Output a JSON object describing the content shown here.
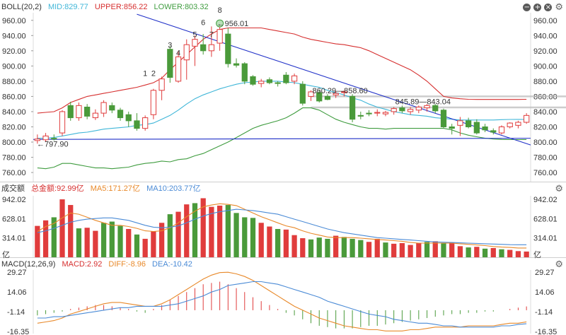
{
  "boll_header": {
    "name": "BOLL(20,2)",
    "mid": "MID:829.77",
    "upper": "UPPER:856.22",
    "lower": "LOWER:803.32"
  },
  "vol_header": {
    "name": "成交额",
    "total": "总金额:92.99亿",
    "ma5": "MA5:171.27亿",
    "ma10": "MA10:203.77亿"
  },
  "macd_header": {
    "name": "MACD(12,26,9)",
    "macd": "MACD:2.92",
    "diff": "DIFF:-8.96",
    "dea": "DEA:-10.42"
  },
  "colors": {
    "up": "#e03c3c",
    "down": "#4a9a3a",
    "mid": "#3fb6d8",
    "upper": "#d62f2f",
    "lower": "#3f9c3f",
    "trend": "#2030c8",
    "ma5": "#e8892a",
    "ma10": "#4b8bd6",
    "macd_diff": "#e8892a",
    "macd_dea": "#4b8bd6"
  },
  "price_ticks": [
    "960.00",
    "940.00",
    "920.00",
    "900.00",
    "880.00",
    "860.00",
    "840.00",
    "820.00",
    "800.00",
    "780.00",
    "760.00"
  ],
  "vol_ticks": [
    "942.02",
    "628.01",
    "314.01",
    "亿"
  ],
  "macd_ticks": [
    "29.27",
    "14.06",
    "-1.14",
    "-16.35"
  ],
  "annotations": {
    "peak": "956.01",
    "low": "797.90",
    "range1": "860.29—858.60",
    "range2": "845.89—843.04",
    "wave_labels": [
      "1",
      "2",
      "3",
      "4",
      "5",
      "6",
      "7",
      "8"
    ]
  },
  "chart_data": [
    {
      "type": "candlestick",
      "name": "BOLL(20,2)",
      "ylim": [
        748,
        970
      ],
      "candles": [
        {
          "o": 802,
          "h": 810,
          "l": 797.9,
          "c": 804
        },
        {
          "o": 803,
          "h": 812,
          "l": 800,
          "c": 808
        },
        {
          "o": 805,
          "h": 810,
          "l": 802,
          "c": 804
        },
        {
          "o": 812,
          "h": 842,
          "l": 808,
          "c": 840
        },
        {
          "o": 848,
          "h": 853,
          "l": 828,
          "c": 832
        },
        {
          "o": 832,
          "h": 852,
          "l": 828,
          "c": 848
        },
        {
          "o": 846,
          "h": 850,
          "l": 830,
          "c": 834
        },
        {
          "o": 832,
          "h": 843,
          "l": 829,
          "c": 838
        },
        {
          "o": 838,
          "h": 855,
          "l": 833,
          "c": 852
        },
        {
          "o": 848,
          "h": 852,
          "l": 838,
          "c": 842
        },
        {
          "o": 842,
          "h": 845,
          "l": 828,
          "c": 832
        },
        {
          "o": 836,
          "h": 840,
          "l": 820,
          "c": 828
        },
        {
          "o": 828,
          "h": 838,
          "l": 815,
          "c": 818
        },
        {
          "o": 818,
          "h": 835,
          "l": 815,
          "c": 832
        },
        {
          "o": 836,
          "h": 870,
          "l": 830,
          "c": 868
        },
        {
          "o": 868,
          "h": 886,
          "l": 855,
          "c": 883
        },
        {
          "o": 922,
          "h": 926,
          "l": 878,
          "c": 885
        },
        {
          "o": 880,
          "h": 920,
          "l": 878,
          "c": 912
        },
        {
          "o": 908,
          "h": 935,
          "l": 882,
          "c": 928
        },
        {
          "o": 926,
          "h": 940,
          "l": 900,
          "c": 935
        },
        {
          "o": 928,
          "h": 942,
          "l": 915,
          "c": 920
        },
        {
          "o": 920,
          "h": 952,
          "l": 912,
          "c": 928
        },
        {
          "o": 930,
          "h": 956.01,
          "l": 920,
          "c": 948
        },
        {
          "o": 942,
          "h": 950,
          "l": 898,
          "c": 903
        },
        {
          "o": 903,
          "h": 910,
          "l": 898,
          "c": 901
        },
        {
          "o": 903,
          "h": 905,
          "l": 876,
          "c": 880
        },
        {
          "o": 886,
          "h": 888,
          "l": 874,
          "c": 876
        },
        {
          "o": 877,
          "h": 883,
          "l": 872,
          "c": 880
        },
        {
          "o": 882,
          "h": 885,
          "l": 876,
          "c": 878
        },
        {
          "o": 878,
          "h": 880,
          "l": 873,
          "c": 877
        },
        {
          "o": 888,
          "h": 892,
          "l": 876,
          "c": 878
        },
        {
          "o": 880,
          "h": 890,
          "l": 876,
          "c": 887
        },
        {
          "o": 876,
          "h": 880,
          "l": 848,
          "c": 851
        },
        {
          "o": 860,
          "h": 868,
          "l": 854,
          "c": 866
        },
        {
          "o": 865,
          "h": 868,
          "l": 852,
          "c": 854
        },
        {
          "o": 860,
          "h": 863,
          "l": 855,
          "c": 856
        },
        {
          "o": 862,
          "h": 867,
          "l": 858,
          "c": 864
        },
        {
          "o": 865,
          "h": 868,
          "l": 860,
          "c": 866
        },
        {
          "o": 860,
          "h": 863,
          "l": 826,
          "c": 830
        },
        {
          "o": 835,
          "h": 840,
          "l": 830,
          "c": 834
        },
        {
          "o": 838,
          "h": 842,
          "l": 834,
          "c": 837
        },
        {
          "o": 838,
          "h": 843,
          "l": 834,
          "c": 839
        },
        {
          "o": 837,
          "h": 841,
          "l": 834,
          "c": 839
        },
        {
          "o": 840,
          "h": 846,
          "l": 836,
          "c": 844
        },
        {
          "o": 845,
          "h": 848,
          "l": 838,
          "c": 841
        },
        {
          "o": 840,
          "h": 846,
          "l": 836,
          "c": 843
        },
        {
          "o": 842,
          "h": 848,
          "l": 838,
          "c": 846
        },
        {
          "o": 845,
          "h": 850,
          "l": 840,
          "c": 848
        },
        {
          "o": 848,
          "h": 850,
          "l": 838,
          "c": 841
        },
        {
          "o": 842,
          "h": 844,
          "l": 818,
          "c": 820
        },
        {
          "o": 820,
          "h": 824,
          "l": 810,
          "c": 818
        },
        {
          "o": 822,
          "h": 833,
          "l": 808,
          "c": 828
        },
        {
          "o": 828,
          "h": 832,
          "l": 818,
          "c": 820
        },
        {
          "o": 826,
          "h": 830,
          "l": 810,
          "c": 812
        },
        {
          "o": 820,
          "h": 824,
          "l": 813,
          "c": 816
        },
        {
          "o": 815,
          "h": 818,
          "l": 810,
          "c": 813
        },
        {
          "o": 812,
          "h": 822,
          "l": 810,
          "c": 820
        },
        {
          "o": 820,
          "h": 826,
          "l": 818,
          "c": 825
        },
        {
          "o": 822,
          "h": 828,
          "l": 818,
          "c": 826
        },
        {
          "o": 826,
          "h": 838,
          "l": 824,
          "c": 835
        }
      ],
      "series": [
        {
          "name": "UPPER",
          "values": [
            838,
            839,
            840,
            845,
            852,
            856,
            860,
            862,
            864,
            866,
            868,
            870,
            872,
            875,
            878,
            884,
            895,
            905,
            915,
            925,
            935,
            942,
            948,
            950,
            950,
            950,
            950,
            950,
            948,
            946,
            944,
            942,
            938,
            935,
            933,
            931,
            929,
            928,
            926,
            924,
            920,
            915,
            910,
            905,
            900,
            895,
            888,
            880,
            870,
            860,
            858,
            857,
            856.22,
            856,
            856,
            856,
            856,
            856,
            856,
            856.22
          ]
        },
        {
          "name": "MID",
          "values": [
            805,
            805,
            806,
            808,
            810,
            812,
            813,
            815,
            817,
            818,
            819,
            820,
            822,
            823,
            825,
            830,
            835,
            842,
            850,
            857,
            862,
            866,
            870,
            873,
            876,
            878,
            879,
            880,
            880,
            880,
            879,
            878,
            876,
            874,
            872,
            868,
            865,
            862,
            858,
            855,
            850,
            846,
            843,
            840,
            838,
            836,
            835,
            834,
            832,
            831,
            830,
            829,
            829,
            829,
            829,
            829,
            829.5,
            829.7,
            829.8,
            829.77
          ]
        },
        {
          "name": "LOWER",
          "values": [
            766,
            765,
            767,
            772,
            772,
            770,
            768,
            766,
            766,
            765,
            766,
            767,
            770,
            772,
            773,
            775,
            774,
            777,
            778,
            782,
            785,
            790,
            795,
            800,
            806,
            812,
            818,
            822,
            825,
            828,
            832,
            838,
            845,
            845,
            842,
            836,
            830,
            826,
            823,
            820,
            818,
            818,
            817,
            818,
            818,
            818,
            818,
            818,
            818,
            818,
            816,
            812,
            809,
            807,
            805,
            804,
            803.5,
            803.3,
            803.3,
            803.32
          ]
        }
      ],
      "trend_lines": [
        {
          "name": "resistance",
          "from": [
            12,
            968
          ],
          "to": [
            59,
            798
          ]
        },
        {
          "name": "support",
          "from": [
            0,
            803.5
          ],
          "to": [
            59,
            805
          ]
        },
        {
          "name": "level1",
          "from": [
            33,
            860.29
          ],
          "to": [
            59,
            858.6
          ]
        },
        {
          "name": "level2",
          "from": [
            43,
            845.89
          ],
          "to": [
            59,
            843.04
          ]
        }
      ]
    },
    {
      "type": "bar",
      "name": "成交额",
      "unit": "亿",
      "ylim": [
        0,
        1000
      ],
      "values": [
        510,
        600,
        650,
        942,
        850,
        470,
        480,
        430,
        560,
        580,
        510,
        460,
        370,
        300,
        420,
        560,
        700,
        740,
        860,
        880,
        960,
        820,
        840,
        850,
        720,
        650,
        640,
        560,
        500,
        460,
        450,
        360,
        310,
        290,
        320,
        300,
        350,
        330,
        300,
        280,
        250,
        300,
        240,
        220,
        230,
        200,
        230,
        250,
        260,
        230,
        240,
        180,
        160,
        170,
        140,
        150,
        130,
        120,
        100,
        92.99
      ],
      "directions": [
        "u",
        "u",
        "d",
        "u",
        "u",
        "d",
        "u",
        "u",
        "d",
        "d",
        "d",
        "u",
        "d",
        "u",
        "u",
        "u",
        "d",
        "u",
        "u",
        "d",
        "u",
        "u",
        "u",
        "d",
        "d",
        "d",
        "d",
        "u",
        "u",
        "d",
        "u",
        "u",
        "u",
        "d",
        "d",
        "d",
        "u",
        "d",
        "d",
        "d",
        "u",
        "u",
        "d",
        "u",
        "u",
        "u",
        "u",
        "d",
        "u",
        "d",
        "u",
        "u",
        "d",
        "u",
        "d",
        "u",
        "d",
        "u",
        "u",
        "u"
      ],
      "series": [
        {
          "name": "MA5",
          "values": [
            420,
            500,
            550,
            640,
            720,
            700,
            650,
            600,
            560,
            520,
            520,
            500,
            470,
            430,
            420,
            430,
            480,
            560,
            660,
            750,
            820,
            850,
            870,
            860,
            840,
            780,
            720,
            660,
            610,
            560,
            510,
            480,
            430,
            390,
            360,
            330,
            320,
            320,
            320,
            310,
            300,
            290,
            280,
            270,
            260,
            240,
            230,
            230,
            230,
            230,
            230,
            220,
            210,
            200,
            190,
            175,
            165,
            160,
            150,
            150
          ]
        },
        {
          "name": "MA10",
          "values": [
            400,
            430,
            470,
            520,
            570,
            600,
            620,
            630,
            640,
            640,
            620,
            600,
            560,
            520,
            490,
            480,
            490,
            510,
            560,
            620,
            670,
            710,
            740,
            760,
            780,
            770,
            760,
            740,
            720,
            700,
            660,
            620,
            580,
            540,
            500,
            460,
            430,
            400,
            380,
            360,
            340,
            320,
            310,
            300,
            290,
            280,
            270,
            260,
            250,
            245,
            240,
            235,
            230,
            225,
            220,
            215,
            210,
            205,
            204,
            203.77
          ]
        }
      ]
    },
    {
      "type": "bar",
      "name": "MACD(12,26,9)",
      "ylim": [
        -18,
        31
      ],
      "values": [
        -4,
        -3,
        -2,
        -1,
        1,
        2,
        3,
        4,
        4,
        3,
        2,
        1,
        -1,
        -2,
        1,
        4,
        8,
        11,
        14,
        17,
        20,
        21,
        22,
        20,
        17,
        14,
        10,
        7,
        4,
        1,
        -2,
        -4,
        -7,
        -10,
        -12,
        -13,
        -14,
        -14,
        -14,
        -13,
        -12,
        -12,
        -11,
        -10,
        -9,
        -8,
        -7,
        -6,
        -5,
        -4,
        -3,
        -3,
        -2,
        -2,
        -1,
        -1,
        0,
        1,
        2,
        2.92
      ],
      "series": [
        {
          "name": "DIFF",
          "values": [
            -10,
            -9,
            -8,
            -6,
            -3,
            -1,
            1,
            3,
            5,
            6,
            6,
            5,
            4,
            3,
            3,
            5,
            8,
            12,
            16,
            20,
            24,
            27,
            29,
            29.27,
            28,
            26,
            23,
            19,
            15,
            11,
            7,
            3,
            0,
            -3,
            -6,
            -8,
            -10,
            -12,
            -13,
            -14,
            -15,
            -15,
            -16,
            -16,
            -16,
            -15,
            -15,
            -14,
            -13,
            -13,
            -13,
            -13,
            -12,
            -12,
            -12,
            -12,
            -11,
            -10,
            -10,
            -8.96
          ]
        },
        {
          "name": "DEA",
          "values": [
            -6,
            -6,
            -5,
            -5,
            -4,
            -3,
            -2,
            -1,
            0,
            1,
            2,
            2,
            3,
            3,
            3,
            3,
            4,
            5,
            7,
            9,
            11,
            14,
            16,
            19,
            20,
            21,
            22,
            22,
            21,
            20,
            18,
            16,
            14,
            12,
            10,
            7,
            5,
            3,
            1,
            -1,
            -3,
            -4,
            -5,
            -7,
            -8,
            -9,
            -10,
            -10,
            -11,
            -12,
            -12,
            -13,
            -13,
            -13,
            -13,
            -13,
            -12,
            -12,
            -11,
            -10.42
          ]
        }
      ]
    }
  ]
}
